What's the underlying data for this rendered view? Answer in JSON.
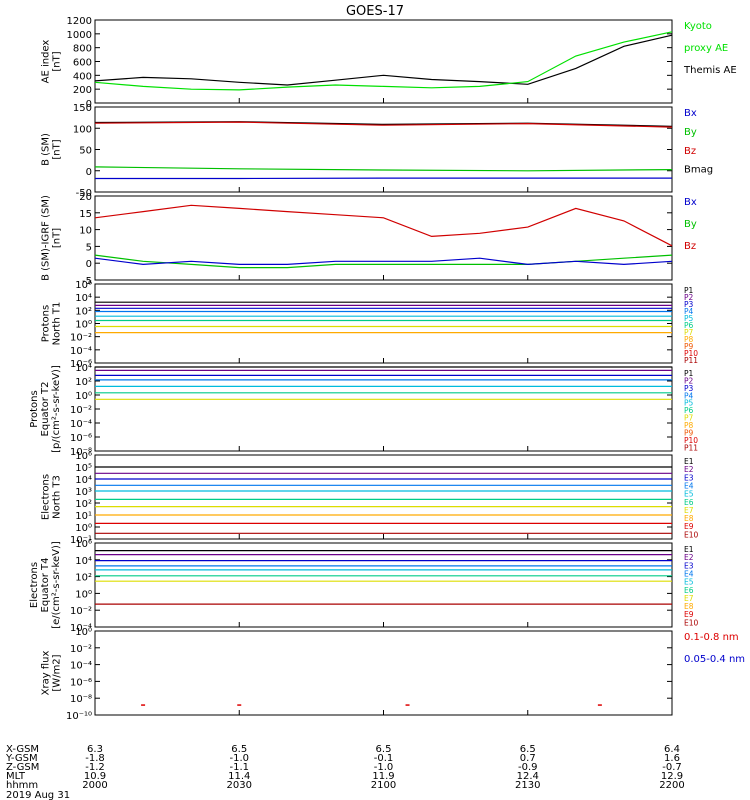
{
  "title": "GOES-17",
  "panels": [
    {
      "id": "ae",
      "ylabel": [
        "AE index",
        "[nT]"
      ],
      "ticks": [
        "0",
        "200",
        "400",
        "600",
        "800",
        "1000",
        "1200"
      ],
      "legend": [
        {
          "text": "Kyoto",
          "color": "#00e000"
        },
        {
          "text": "proxy AE",
          "color": "#00e000"
        },
        {
          "text": "Themis AE",
          "color": "#000000"
        }
      ]
    },
    {
      "id": "bsm",
      "ylabel": [
        "B (SM)",
        "[nT]"
      ],
      "ticks": [
        "-50",
        "0",
        "50",
        "100",
        "150"
      ],
      "legend": [
        {
          "text": "Bx",
          "color": "#0000cc"
        },
        {
          "text": "By",
          "color": "#00c000"
        },
        {
          "text": "Bz",
          "color": "#d00000"
        },
        {
          "text": "Bmag",
          "color": "#000000"
        }
      ]
    },
    {
      "id": "bdiff",
      "ylabel": [
        "B (SM)-IGRF (SM)",
        "[nT]"
      ],
      "ticks": [
        "-5",
        "0",
        "5",
        "10",
        "15",
        "20"
      ],
      "legend": [
        {
          "text": "Bx",
          "color": "#0000cc"
        },
        {
          "text": "By",
          "color": "#00c000"
        },
        {
          "text": "Bz",
          "color": "#d00000"
        }
      ]
    },
    {
      "id": "pt1",
      "ylabel": [
        "Protons",
        "North T1"
      ],
      "ticks": [
        "10⁻⁶",
        "10⁻⁴",
        "10⁻²",
        "10⁰",
        "10²",
        "10⁴",
        "10⁶"
      ],
      "legend": [
        {
          "text": "P1",
          "color": "#000000"
        },
        {
          "text": "P2",
          "color": "#6a0088"
        },
        {
          "text": "P3",
          "color": "#0000cc"
        },
        {
          "text": "P4",
          "color": "#0077ee"
        },
        {
          "text": "P5",
          "color": "#00bbdd"
        },
        {
          "text": "P6",
          "color": "#00cc88"
        },
        {
          "text": "P7",
          "color": "#dddd00"
        },
        {
          "text": "P8",
          "color": "#ffaa00"
        },
        {
          "text": "P9",
          "color": "#ee5500"
        },
        {
          "text": "P10",
          "color": "#dd0000"
        },
        {
          "text": "P11",
          "color": "#aa0000"
        }
      ]
    },
    {
      "id": "pt2",
      "ylabel": [
        "Protons",
        "Equator T2",
        "[p/(cm²-s-sr-keV)]"
      ],
      "ticks": [
        "10⁻⁸",
        "10⁻⁶",
        "10⁻⁴",
        "10⁻²",
        "10⁰",
        "10²",
        "10⁴"
      ],
      "legend": [
        {
          "text": "P1",
          "color": "#000000"
        },
        {
          "text": "P2",
          "color": "#6a0088"
        },
        {
          "text": "P3",
          "color": "#0000cc"
        },
        {
          "text": "P4",
          "color": "#0077ee"
        },
        {
          "text": "P5",
          "color": "#00bbdd"
        },
        {
          "text": "P6",
          "color": "#00cc88"
        },
        {
          "text": "P7",
          "color": "#dddd00"
        },
        {
          "text": "P8",
          "color": "#ffaa00"
        },
        {
          "text": "P9",
          "color": "#ee5500"
        },
        {
          "text": "P10",
          "color": "#dd0000"
        },
        {
          "text": "P11",
          "color": "#aa0000"
        }
      ]
    },
    {
      "id": "et3",
      "ylabel": [
        "Electrons",
        "North T3"
      ],
      "ticks": [
        "10⁻¹",
        "10⁰",
        "10¹",
        "10²",
        "10³",
        "10⁴",
        "10⁵",
        "10⁶"
      ],
      "legend": [
        {
          "text": "E1",
          "color": "#000000"
        },
        {
          "text": "E2",
          "color": "#6a0088"
        },
        {
          "text": "E3",
          "color": "#0000cc"
        },
        {
          "text": "E4",
          "color": "#0077ee"
        },
        {
          "text": "E5",
          "color": "#00bbdd"
        },
        {
          "text": "E6",
          "color": "#00cc88"
        },
        {
          "text": "E7",
          "color": "#dddd00"
        },
        {
          "text": "E8",
          "color": "#ffaa00"
        },
        {
          "text": "E9",
          "color": "#dd0000"
        },
        {
          "text": "E10",
          "color": "#aa0000"
        }
      ]
    },
    {
      "id": "et4",
      "ylabel": [
        "Electrons",
        "Equator T4",
        "[e/(cm²-s-sr-keV)]"
      ],
      "ticks": [
        "10⁻⁴",
        "10⁻²",
        "10⁰",
        "10²",
        "10⁴",
        "10⁶"
      ],
      "legend": [
        {
          "text": "E1",
          "color": "#000000"
        },
        {
          "text": "E2",
          "color": "#6a0088"
        },
        {
          "text": "E3",
          "color": "#0000cc"
        },
        {
          "text": "E4",
          "color": "#0077ee"
        },
        {
          "text": "E5",
          "color": "#00bbdd"
        },
        {
          "text": "E6",
          "color": "#00cc88"
        },
        {
          "text": "E7",
          "color": "#dddd00"
        },
        {
          "text": "E8",
          "color": "#ffaa00"
        },
        {
          "text": "E9",
          "color": "#dd0000"
        },
        {
          "text": "E10",
          "color": "#aa0000"
        }
      ]
    },
    {
      "id": "xray",
      "ylabel": [
        "Xray flux",
        "[W/m2]"
      ],
      "ticks": [
        "10⁻¹⁰",
        "10⁻⁸",
        "10⁻⁶",
        "10⁻⁴",
        "10⁻²",
        "10⁰"
      ],
      "legend": [
        {
          "text": "0.1-0.8 nm",
          "color": "#dd0000"
        },
        {
          "text": "0.05-0.4 nm",
          "color": "#0000cc"
        }
      ]
    }
  ],
  "footer": {
    "row_labels": [
      "X-GSM",
      "Y-GSM",
      "Z-GSM",
      "MLT",
      "hhmm",
      "2019 Aug 31"
    ],
    "columns": [
      [
        "6.3",
        "-1.8",
        "-1.2",
        "10.9",
        "2000"
      ],
      [
        "6.5",
        "-1.0",
        "-1.1",
        "11.4",
        "2030"
      ],
      [
        "6.5",
        "-0.1",
        "-1.0",
        "11.9",
        "2100"
      ],
      [
        "6.5",
        "0.7",
        "-0.9",
        "12.4",
        "2130"
      ],
      [
        "6.4",
        "1.6",
        "-0.7",
        "12.9",
        "2200"
      ]
    ]
  },
  "chart_data": [
    {
      "type": "line",
      "panel": "AE index",
      "x": [
        "2000",
        "2010",
        "2020",
        "2030",
        "2040",
        "2050",
        "2100",
        "2110",
        "2120",
        "2130",
        "2140",
        "2150",
        "2200"
      ],
      "ylim": [
        0,
        1200
      ],
      "series": [
        {
          "name": "Themis AE",
          "color": "#000000",
          "values": [
            320,
            370,
            350,
            300,
            260,
            330,
            400,
            340,
            310,
            270,
            500,
            820,
            980
          ]
        },
        {
          "name": "Kyoto proxy AE",
          "color": "#00e000",
          "values": [
            300,
            240,
            200,
            190,
            230,
            260,
            240,
            220,
            240,
            310,
            680,
            880,
            1030
          ]
        }
      ]
    },
    {
      "type": "line",
      "panel": "B (SM)",
      "x": [
        "2000",
        "2030",
        "2100",
        "2130",
        "2200"
      ],
      "ylim": [
        -60,
        160
      ],
      "series": [
        {
          "name": "Bmag",
          "color": "#000000",
          "values": [
            120,
            122,
            115,
            118,
            110
          ]
        },
        {
          "name": "Bz",
          "color": "#d00000",
          "values": [
            118,
            121,
            113,
            117,
            108
          ]
        },
        {
          "name": "By",
          "color": "#00c000",
          "values": [
            5,
            0,
            -3,
            -5,
            -2
          ]
        },
        {
          "name": "Bx",
          "color": "#0000cc",
          "values": [
            -25,
            -25,
            -24,
            -24,
            -24
          ]
        }
      ]
    },
    {
      "type": "line",
      "panel": "B (SM)-IGRF (SM)",
      "x": [
        "2000",
        "2010",
        "2020",
        "2030",
        "2040",
        "2050",
        "2100",
        "2110",
        "2120",
        "2130",
        "2140",
        "2150",
        "2200"
      ],
      "ylim": [
        -6,
        21
      ],
      "series": [
        {
          "name": "Bz",
          "color": "#d00000",
          "values": [
            14,
            16,
            18,
            17,
            16,
            15,
            14,
            8,
            9,
            11,
            17,
            13,
            5
          ]
        },
        {
          "name": "By",
          "color": "#00c000",
          "values": [
            2,
            0,
            -1,
            -2,
            -2,
            -1,
            -1,
            -1,
            -1,
            -1,
            0,
            1,
            2
          ]
        },
        {
          "name": "Bx",
          "color": "#0000cc",
          "values": [
            1,
            -1,
            0,
            -1,
            -1,
            0,
            0,
            0,
            1,
            -1,
            0,
            -1,
            0
          ]
        }
      ]
    },
    {
      "type": "line",
      "panel": "Protons North T1",
      "yscale": "log",
      "x": [
        "2000",
        "2200"
      ],
      "ylim": [
        "1e-7",
        "1e6"
      ],
      "series": [
        {
          "name": "P1",
          "values": [
            "1e3",
            "1e3"
          ]
        },
        {
          "name": "P2",
          "values": [
            "3e2",
            "3e2"
          ]
        },
        {
          "name": "P3",
          "values": [
            "1e2",
            "1e2"
          ]
        },
        {
          "name": "P4",
          "values": [
            "3e1",
            "3e1"
          ]
        },
        {
          "name": "P5",
          "values": [
            "5e0",
            "5e0"
          ]
        },
        {
          "name": "P6",
          "values": [
            "1e0",
            "1e0"
          ]
        },
        {
          "name": "P7",
          "values": [
            "1e-1",
            "1e-1"
          ]
        },
        {
          "name": "P8",
          "values": [
            "1e-2",
            "1e-2"
          ]
        }
      ]
    },
    {
      "type": "line",
      "panel": "Protons Equator T2",
      "yscale": "log",
      "x": [
        "2000",
        "2200"
      ],
      "ylim": [
        "1e-9",
        "1e4"
      ],
      "series": [
        {
          "name": "P1",
          "values": [
            "1e4",
            "1e4"
          ]
        },
        {
          "name": "P2",
          "values": [
            "3e3",
            "3e3"
          ]
        },
        {
          "name": "P3",
          "values": [
            "5e2",
            "5e2"
          ]
        },
        {
          "name": "P4",
          "values": [
            "1e2",
            "1e2"
          ]
        },
        {
          "name": "P5",
          "values": [
            "1e1",
            "1e1"
          ]
        },
        {
          "name": "P6",
          "values": [
            "1e0",
            "1e0"
          ]
        },
        {
          "name": "P7",
          "values": [
            "1e-1",
            "1e-1"
          ]
        }
      ]
    },
    {
      "type": "line",
      "panel": "Electrons North T3",
      "yscale": "log",
      "x": [
        "2000",
        "2200"
      ],
      "ylim": [
        "1e-1",
        "1e6"
      ],
      "series": [
        {
          "name": "E1",
          "values": [
            "1e5",
            "1e5"
          ]
        },
        {
          "name": "E2",
          "values": [
            "3e4",
            "3e4"
          ]
        },
        {
          "name": "E3",
          "values": [
            "1e4",
            "1e4"
          ]
        },
        {
          "name": "E4",
          "values": [
            "3e3",
            "3e3"
          ]
        },
        {
          "name": "E5",
          "values": [
            "1e3",
            "1e3"
          ]
        },
        {
          "name": "E6",
          "values": [
            "2e2",
            "2e2"
          ]
        },
        {
          "name": "E7",
          "values": [
            "5e1",
            "5e1"
          ]
        },
        {
          "name": "E8",
          "values": [
            "1e1",
            "1e1"
          ]
        },
        {
          "name": "E9",
          "values": [
            "2e0",
            "2e0"
          ]
        },
        {
          "name": "E10",
          "values": [
            "3e-1",
            "3e-1"
          ]
        }
      ]
    },
    {
      "type": "line",
      "panel": "Electrons Equator T4",
      "yscale": "log",
      "x": [
        "2000",
        "2200"
      ],
      "ylim": [
        "1e-5",
        "1e6"
      ],
      "series": [
        {
          "name": "E1",
          "values": [
            "1e5",
            "1e5"
          ]
        },
        {
          "name": "E2",
          "values": [
            "3e4",
            "3e4"
          ]
        },
        {
          "name": "E3",
          "values": [
            "5e3",
            "5e3"
          ]
        },
        {
          "name": "E4",
          "values": [
            "1e3",
            "1e3"
          ]
        },
        {
          "name": "E5",
          "values": [
            "3e2",
            "3e2"
          ]
        },
        {
          "name": "E6",
          "values": [
            "5e1",
            "5e1"
          ]
        },
        {
          "name": "E7",
          "values": [
            "1e1",
            "1e1"
          ]
        },
        {
          "name": "E10",
          "values": [
            "1e-2",
            "1e-2"
          ]
        }
      ]
    },
    {
      "type": "scatter",
      "panel": "Xray flux",
      "yscale": "log",
      "x": [
        "2010",
        "2030",
        "2105",
        "2145"
      ],
      "ylim": [
        "1e-11",
        "1e0"
      ],
      "series": [
        {
          "name": "0.1-0.8 nm",
          "values": [
            "2e-10",
            "2e-10",
            "2e-10",
            "2e-10"
          ]
        }
      ]
    }
  ]
}
